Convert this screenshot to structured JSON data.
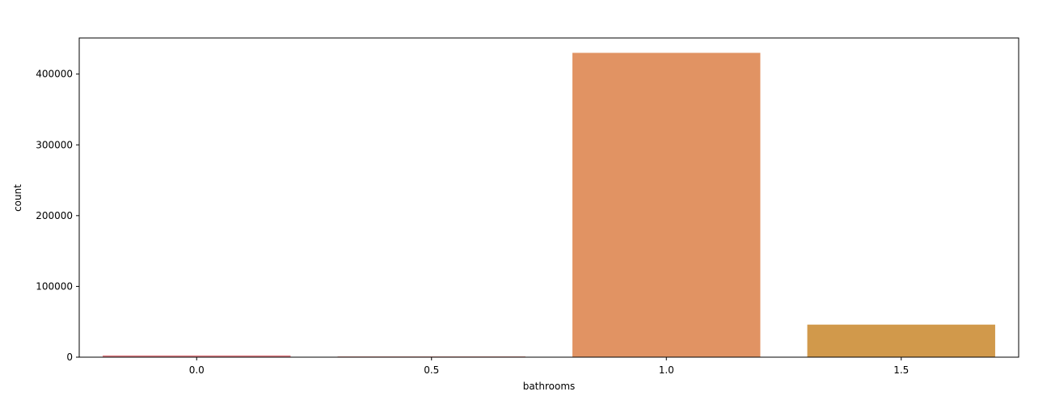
{
  "chart_data": {
    "type": "bar",
    "title": "",
    "xlabel": "bathrooms",
    "ylabel": "count",
    "categories": [
      "0.0",
      "0.5",
      "1.0",
      "1.5"
    ],
    "values": [
      2500,
      1000,
      430000,
      46000
    ],
    "colors": [
      "#e1848a",
      "#e0887a",
      "#e19363",
      "#d1994b"
    ],
    "ylim": [
      0,
      451000
    ],
    "yticks": [
      0,
      100000,
      200000,
      300000,
      400000
    ],
    "grid": false,
    "legend": "none"
  }
}
